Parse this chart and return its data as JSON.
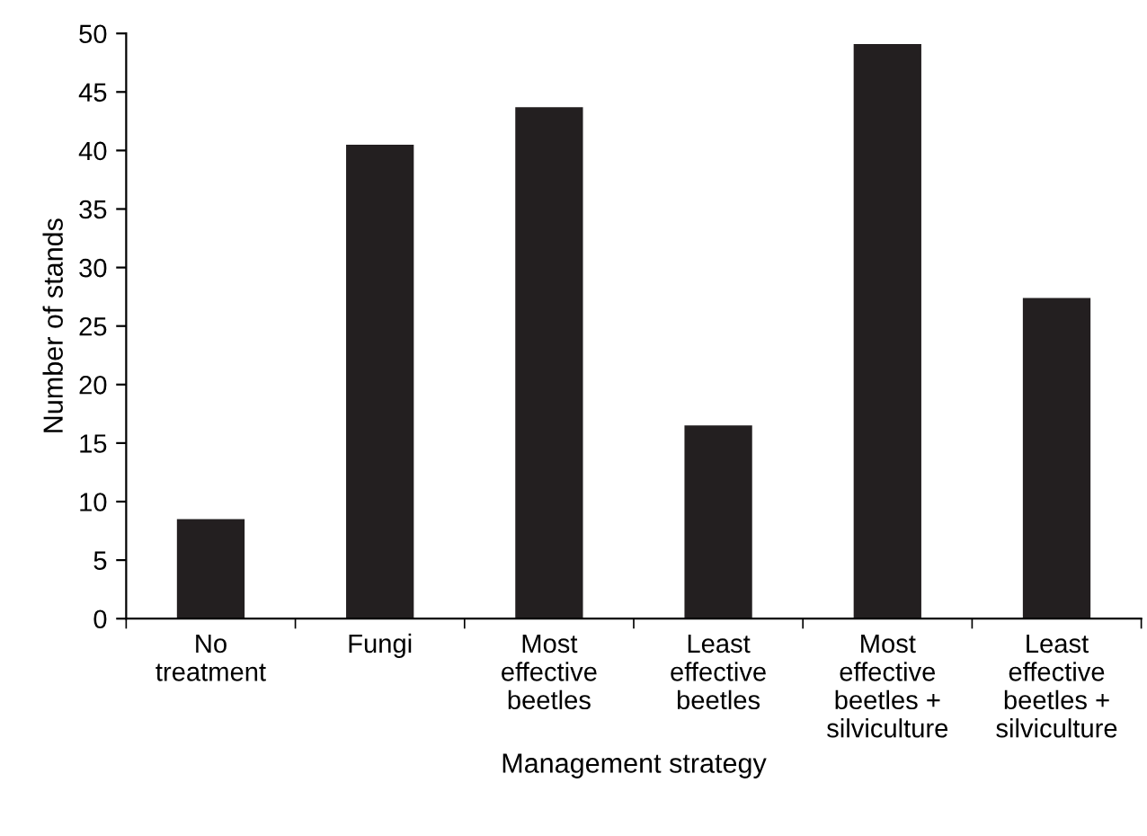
{
  "chart_data": {
    "type": "bar",
    "xlabel": "Management strategy",
    "ylabel": "Number of stands",
    "categories": [
      "No\ntreatment",
      "Fungi",
      "Most\neffective\nbeetles",
      "Least\neffective\nbeetles",
      "Most\neffective\nbeetles +\nsilviculture",
      "Least\neffective\nbeetles +\nsilviculture"
    ],
    "values": [
      8.5,
      40.5,
      43.7,
      16.5,
      49.1,
      27.4
    ],
    "color": "#231f20",
    "ylim": [
      0,
      50
    ],
    "yticks": [
      0,
      5,
      10,
      15,
      20,
      25,
      30,
      35,
      40,
      45,
      50
    ],
    "grid": false,
    "legend": false
  }
}
